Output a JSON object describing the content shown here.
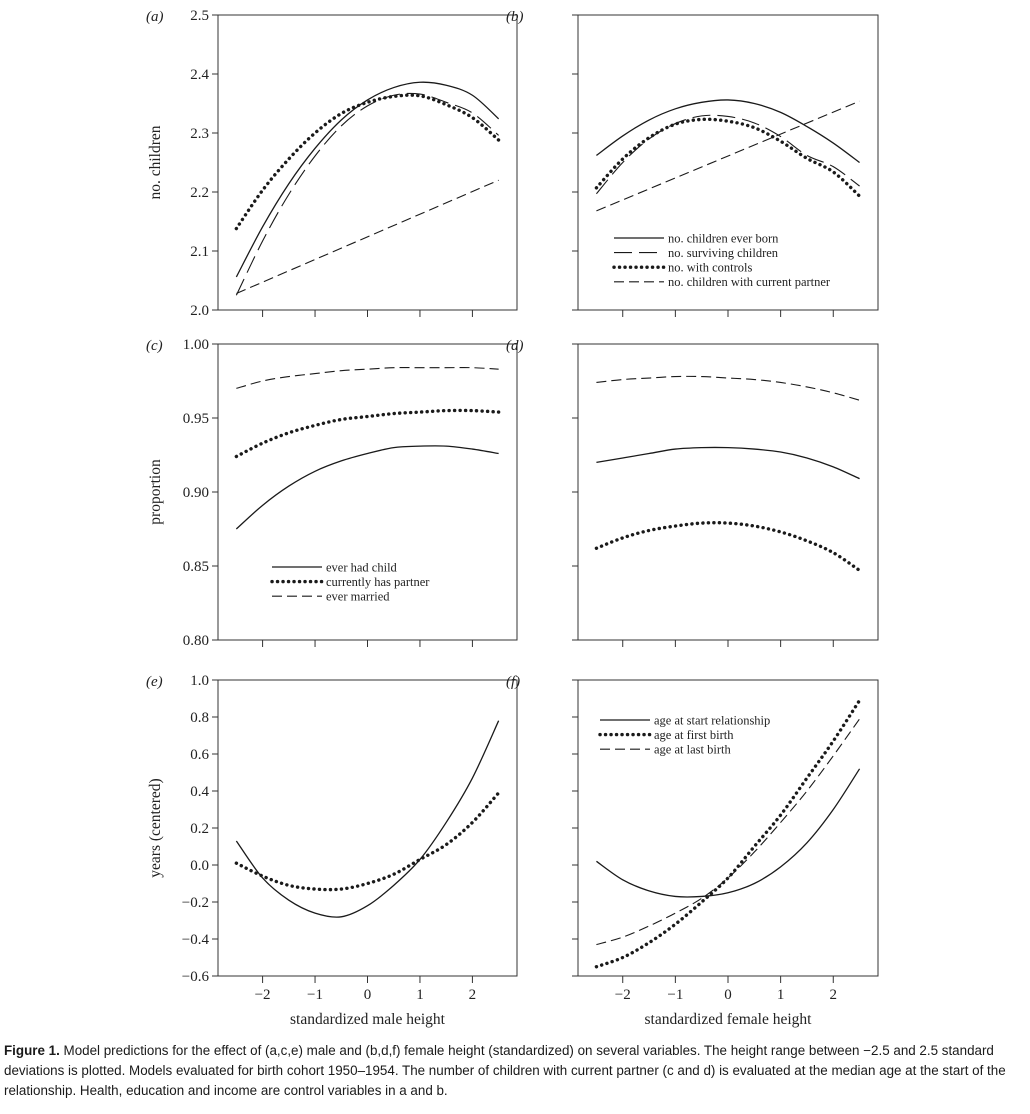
{
  "caption": {
    "label": "Figure 1.",
    "text": "Model predictions for the effect of (a,c,e) male and (b,d,f) female height (standardized) on several variables. The height range between −2.5 and 2.5 standard deviations is plotted. Models evaluated for birth cohort 1950–1954. The number of children with current partner (c and d) is evaluated at the median age at the start of the relationship. Health, education and income are control variables in a and b."
  },
  "colors": {
    "line": "#1a1a1a",
    "axis": "#333333"
  },
  "chart_data": [
    {
      "panel": "(a)",
      "type": "line",
      "ylabel": "no. children",
      "xlabel": "",
      "xlim": [
        -2.85,
        2.85
      ],
      "ylim": [
        2.0,
        2.5
      ],
      "xticks": [
        -2,
        -1,
        0,
        1,
        2
      ],
      "yticks": [
        2.0,
        2.1,
        2.2,
        2.3,
        2.4,
        2.5
      ],
      "ytick_labels": [
        "2.0",
        "2.1",
        "2.2",
        "2.3",
        "2.4",
        "2.5"
      ],
      "series": [
        {
          "name": "no. children ever born",
          "style": "solid",
          "x": [
            -2.5,
            -2,
            -1.5,
            -1,
            -0.5,
            0,
            0.5,
            1,
            1.5,
            2,
            2.5
          ],
          "y": [
            2.056,
            2.141,
            2.214,
            2.274,
            2.322,
            2.356,
            2.377,
            2.386,
            2.381,
            2.364,
            2.324
          ]
        },
        {
          "name": "no. surviving children",
          "style": "longdash",
          "x": [
            -2.5,
            -2,
            -1.5,
            -1,
            -0.5,
            0,
            0.5,
            1,
            1.5,
            2,
            2.5
          ],
          "y": [
            2.025,
            2.117,
            2.196,
            2.261,
            2.312,
            2.346,
            2.364,
            2.366,
            2.352,
            2.334,
            2.296
          ]
        },
        {
          "name": "no. with controls",
          "style": "dotted",
          "x": [
            -2.5,
            -2,
            -1.5,
            -1,
            -0.5,
            0,
            0.5,
            1,
            1.5,
            2,
            2.5
          ],
          "y": [
            2.138,
            2.203,
            2.256,
            2.3,
            2.333,
            2.352,
            2.362,
            2.363,
            2.348,
            2.326,
            2.288
          ]
        },
        {
          "name": "no. children with current partner",
          "style": "dash",
          "x": [
            -2.5,
            2.5
          ],
          "y": [
            2.028,
            2.22
          ]
        }
      ]
    },
    {
      "panel": "(b)",
      "type": "line",
      "ylabel": "",
      "xlabel": "",
      "xlim": [
        -2.85,
        2.85
      ],
      "ylim": [
        2.0,
        2.5
      ],
      "xticks": [
        -2,
        -1,
        0,
        1,
        2
      ],
      "yticks": [
        2.0,
        2.1,
        2.2,
        2.3,
        2.4,
        2.5
      ],
      "ytick_labels": [],
      "legend_position": "bottom-right",
      "series": [
        {
          "name": "no. children ever born",
          "style": "solid",
          "x": [
            -2.5,
            -2,
            -1.5,
            -1,
            -0.5,
            0,
            0.5,
            1,
            1.5,
            2,
            2.5
          ],
          "y": [
            2.262,
            2.295,
            2.322,
            2.341,
            2.352,
            2.356,
            2.35,
            2.335,
            2.311,
            2.283,
            2.25
          ]
        },
        {
          "name": "no. surviving children",
          "style": "longdash",
          "x": [
            -2.5,
            -2,
            -1.5,
            -1,
            -0.5,
            0,
            0.5,
            1,
            1.5,
            2,
            2.5
          ],
          "y": [
            2.197,
            2.25,
            2.29,
            2.316,
            2.329,
            2.328,
            2.317,
            2.294,
            2.262,
            2.243,
            2.21
          ]
        },
        {
          "name": "no. with controls",
          "style": "dotted",
          "x": [
            -2.5,
            -2,
            -1.5,
            -1,
            -0.5,
            0,
            0.5,
            1,
            1.5,
            2,
            2.5
          ],
          "y": [
            2.207,
            2.256,
            2.292,
            2.315,
            2.323,
            2.32,
            2.309,
            2.286,
            2.257,
            2.234,
            2.193
          ]
        },
        {
          "name": "no. children with current partner",
          "style": "dash",
          "x": [
            -2.5,
            2.5
          ],
          "y": [
            2.168,
            2.354
          ]
        }
      ]
    },
    {
      "panel": "(c)",
      "type": "line",
      "ylabel": "proportion",
      "xlabel": "",
      "xlim": [
        -2.85,
        2.85
      ],
      "ylim": [
        0.8,
        1.0
      ],
      "xticks": [
        -2,
        -1,
        0,
        1,
        2
      ],
      "yticks": [
        0.8,
        0.85,
        0.9,
        0.95,
        1.0
      ],
      "ytick_labels": [
        "0.80",
        "0.85",
        "0.90",
        "0.95",
        "1.00"
      ],
      "legend_position": "bottom-center",
      "series": [
        {
          "name": "ever had child",
          "style": "solid",
          "x": [
            -2.5,
            -2,
            -1.5,
            -1,
            -0.5,
            0,
            0.5,
            1,
            1.5,
            2,
            2.5
          ],
          "y": [
            0.875,
            0.891,
            0.904,
            0.914,
            0.921,
            0.926,
            0.93,
            0.931,
            0.931,
            0.929,
            0.926
          ]
        },
        {
          "name": "currently has partner",
          "style": "dotted",
          "x": [
            -2.5,
            -2,
            -1.5,
            -1,
            -0.5,
            0,
            0.5,
            1,
            1.5,
            2,
            2.5
          ],
          "y": [
            0.924,
            0.933,
            0.94,
            0.945,
            0.949,
            0.951,
            0.953,
            0.954,
            0.955,
            0.955,
            0.954
          ]
        },
        {
          "name": "ever married",
          "style": "dash",
          "x": [
            -2.5,
            -2,
            -1.5,
            -1,
            -0.5,
            0,
            0.5,
            1,
            1.5,
            2,
            2.5
          ],
          "y": [
            0.97,
            0.975,
            0.978,
            0.98,
            0.982,
            0.983,
            0.984,
            0.984,
            0.984,
            0.984,
            0.983
          ]
        }
      ]
    },
    {
      "panel": "(d)",
      "type": "line",
      "ylabel": "",
      "xlabel": "",
      "xlim": [
        -2.85,
        2.85
      ],
      "ylim": [
        0.8,
        1.0
      ],
      "xticks": [
        -2,
        -1,
        0,
        1,
        2
      ],
      "yticks": [
        0.8,
        0.85,
        0.9,
        0.95,
        1.0
      ],
      "ytick_labels": [],
      "series": [
        {
          "name": "ever had child",
          "style": "solid",
          "x": [
            -2.5,
            -2,
            -1.5,
            -1,
            -0.5,
            0,
            0.5,
            1,
            1.5,
            2,
            2.5
          ],
          "y": [
            0.92,
            0.923,
            0.926,
            0.929,
            0.93,
            0.93,
            0.929,
            0.927,
            0.923,
            0.917,
            0.909
          ]
        },
        {
          "name": "currently has partner",
          "style": "dotted",
          "x": [
            -2.5,
            -2,
            -1.5,
            -1,
            -0.5,
            0,
            0.5,
            1,
            1.5,
            2,
            2.5
          ],
          "y": [
            0.862,
            0.869,
            0.874,
            0.877,
            0.879,
            0.879,
            0.877,
            0.873,
            0.867,
            0.859,
            0.847
          ]
        },
        {
          "name": "ever married",
          "style": "dash",
          "x": [
            -2.5,
            -2,
            -1.5,
            -1,
            -0.5,
            0,
            0.5,
            1,
            1.5,
            2,
            2.5
          ],
          "y": [
            0.974,
            0.976,
            0.977,
            0.978,
            0.978,
            0.977,
            0.976,
            0.974,
            0.971,
            0.967,
            0.962
          ]
        }
      ]
    },
    {
      "panel": "(e)",
      "type": "line",
      "ylabel": "years (centered)",
      "xlabel": "standardized male height",
      "xlim": [
        -2.85,
        2.85
      ],
      "ylim": [
        -0.6,
        1.0
      ],
      "xticks": [
        -2,
        -1,
        0,
        1,
        2
      ],
      "xtick_labels": [
        "−2",
        "−1",
        "0",
        "1",
        "2"
      ],
      "yticks": [
        -0.6,
        -0.4,
        -0.2,
        0.0,
        0.2,
        0.4,
        0.6,
        0.8,
        1.0
      ],
      "ytick_labels": [
        "−0.6",
        "−0.4",
        "−0.2",
        "0.0",
        "0.2",
        "0.4",
        "0.6",
        "0.8",
        "1.0"
      ],
      "series": [
        {
          "name": "",
          "style": "solid",
          "x": [
            -2.5,
            -2,
            -1.5,
            -1,
            -0.5,
            0,
            0.5,
            1,
            1.5,
            2,
            2.5
          ],
          "y": [
            0.13,
            -0.07,
            -0.19,
            -0.26,
            -0.28,
            -0.22,
            -0.11,
            0.03,
            0.23,
            0.47,
            0.78
          ]
        },
        {
          "name": "",
          "style": "dotted",
          "x": [
            -2.5,
            -2,
            -1.5,
            -1,
            -0.5,
            0,
            0.5,
            1,
            1.5,
            2,
            2.5
          ],
          "y": [
            0.01,
            -0.06,
            -0.11,
            -0.13,
            -0.13,
            -0.1,
            -0.05,
            0.03,
            0.11,
            0.23,
            0.39
          ]
        }
      ]
    },
    {
      "panel": "(f)",
      "type": "line",
      "ylabel": "",
      "xlabel": "standardized female height",
      "xlim": [
        -2.85,
        2.85
      ],
      "ylim": [
        -0.6,
        1.0
      ],
      "xticks": [
        -2,
        -1,
        0,
        1,
        2
      ],
      "xtick_labels": [
        "−2",
        "−1",
        "0",
        "1",
        "2"
      ],
      "yticks": [
        -0.6,
        -0.4,
        -0.2,
        0.0,
        0.2,
        0.4,
        0.6,
        0.8,
        1.0
      ],
      "ytick_labels": [],
      "legend_position": "top-left",
      "series": [
        {
          "name": "age at start relationship",
          "style": "solid",
          "x": [
            -2.5,
            -2,
            -1.5,
            -1,
            -0.5,
            0,
            0.5,
            1,
            1.5,
            2,
            2.5
          ],
          "y": [
            0.02,
            -0.08,
            -0.14,
            -0.17,
            -0.17,
            -0.15,
            -0.1,
            -0.01,
            0.12,
            0.3,
            0.52
          ]
        },
        {
          "name": "age at first birth",
          "style": "dotted",
          "x": [
            -2.5,
            -2,
            -1.5,
            -1,
            -0.5,
            0,
            0.5,
            1,
            1.5,
            2,
            2.5
          ],
          "y": [
            -0.55,
            -0.5,
            -0.42,
            -0.32,
            -0.2,
            -0.07,
            0.1,
            0.27,
            0.47,
            0.67,
            0.89
          ]
        },
        {
          "name": "age at last birth",
          "style": "dash",
          "x": [
            -2.5,
            -2,
            -1.5,
            -1,
            -0.5,
            0,
            0.5,
            1,
            1.5,
            2,
            2.5
          ],
          "y": [
            -0.43,
            -0.39,
            -0.33,
            -0.26,
            -0.18,
            -0.07,
            0.07,
            0.23,
            0.4,
            0.59,
            0.79
          ]
        }
      ]
    }
  ]
}
